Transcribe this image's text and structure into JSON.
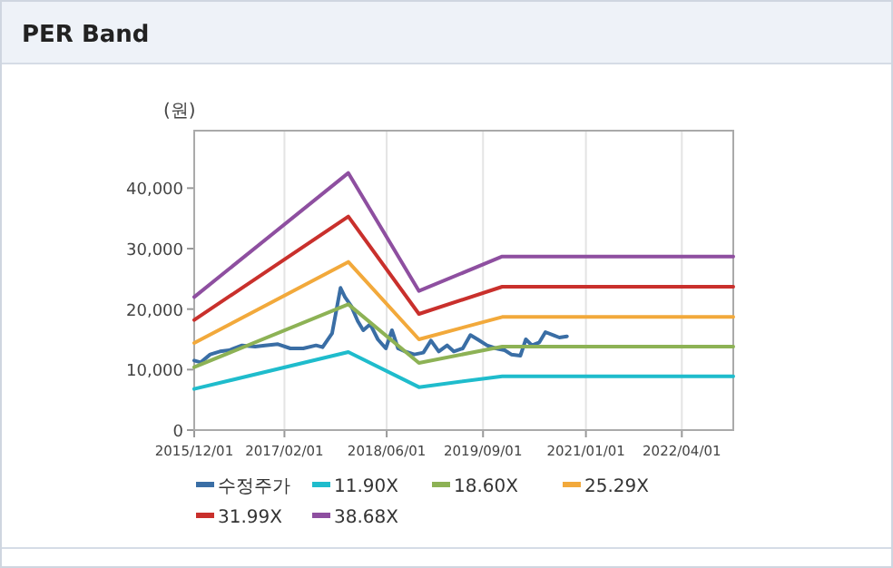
{
  "chart_data": {
    "type": "line",
    "title": "PER Band",
    "ylabel": "(원)",
    "xlim": [
      "2015-12-01",
      "2022-12-01"
    ],
    "xticks": [
      {
        "value": "2015-12-01",
        "label": "2015/12/01"
      },
      {
        "value": "2017-02-01",
        "label": "2017/02/01"
      },
      {
        "value": "2018-06-01",
        "label": "2018/06/01"
      },
      {
        "value": "2019-09-01",
        "label": "2019/09/01"
      },
      {
        "value": "2021-01-01",
        "label": "2021/01/01"
      },
      {
        "value": "2022-04-01",
        "label": "2022/04/01"
      }
    ],
    "ylim": [
      0,
      49500
    ],
    "yticks": [
      0,
      {
        "value": 10000,
        "label": "10,000"
      },
      {
        "value": 20000,
        "label": "20,000"
      },
      {
        "value": 30000,
        "label": "30,000"
      },
      {
        "value": 40000,
        "label": "40,000"
      }
    ],
    "grid": "x",
    "legend": "bottom",
    "marker": "none",
    "line_style": "solid",
    "series": [
      {
        "name": "수정주가",
        "color": "#3a6ea5",
        "x": [
          "2015-12-01",
          "2016-01-01",
          "2016-02-15",
          "2016-04-01",
          "2016-05-15",
          "2016-07-15",
          "2016-09-15",
          "2016-11-01",
          "2017-01-01",
          "2017-03-01",
          "2017-05-01",
          "2017-07-01",
          "2017-08-01",
          "2017-09-15",
          "2017-10-25",
          "2017-11-15",
          "2017-12-15",
          "2018-01-15",
          "2018-02-10",
          "2018-03-15",
          "2018-04-20",
          "2018-05-28",
          "2018-06-26",
          "2018-07-25",
          "2018-08-28",
          "2018-10-10",
          "2018-11-22",
          "2018-12-28",
          "2019-02-03",
          "2019-03-15",
          "2019-04-15",
          "2019-05-28",
          "2019-07-03",
          "2019-08-06",
          "2019-09-20",
          "2019-11-01",
          "2019-12-13",
          "2020-01-13",
          "2020-02-25",
          "2020-03-22",
          "2020-04-20",
          "2020-05-25",
          "2020-06-23",
          "2020-07-30",
          "2020-08-28",
          "2020-10-03"
        ],
        "values": [
          11500,
          11200,
          12500,
          13000,
          13200,
          14000,
          13800,
          14000,
          14200,
          13500,
          13500,
          14000,
          13700,
          16000,
          23500,
          22000,
          20500,
          18000,
          16500,
          17500,
          15000,
          13500,
          16500,
          13500,
          13000,
          12500,
          12800,
          14800,
          13000,
          14000,
          13000,
          13500,
          15700,
          15000,
          14000,
          13500,
          13200,
          12500,
          12300,
          15000,
          14000,
          14500,
          16200,
          15700,
          15300,
          15500
        ]
      },
      {
        "name": "11.90X",
        "color": "#1fbccc",
        "x": [
          "2015-12-01",
          "2017-12-01",
          "2018-11-01",
          "2019-12-01",
          "2022-12-01"
        ],
        "values": [
          6800,
          12900,
          7100,
          8900,
          8900
        ]
      },
      {
        "name": "18.60X",
        "color": "#8db255",
        "x": [
          "2015-12-01",
          "2017-12-01",
          "2018-11-01",
          "2019-12-01",
          "2022-12-01"
        ],
        "values": [
          10400,
          20800,
          11100,
          13800,
          13800
        ]
      },
      {
        "name": "25.29X",
        "color": "#f2a93b",
        "x": [
          "2015-12-01",
          "2017-12-01",
          "2018-11-01",
          "2019-12-01",
          "2022-12-01"
        ],
        "values": [
          14400,
          27800,
          15000,
          18700,
          18700
        ]
      },
      {
        "name": "31.99X",
        "color": "#c9302c",
        "x": [
          "2015-12-01",
          "2017-12-01",
          "2018-11-01",
          "2019-12-01",
          "2022-12-01"
        ],
        "values": [
          18200,
          35300,
          19200,
          23700,
          23700
        ]
      },
      {
        "name": "38.68X",
        "color": "#8e4fa0",
        "x": [
          "2015-12-01",
          "2017-12-01",
          "2018-11-01",
          "2019-12-01",
          "2022-12-01"
        ],
        "values": [
          22000,
          42500,
          23000,
          28700,
          28700
        ]
      }
    ]
  }
}
